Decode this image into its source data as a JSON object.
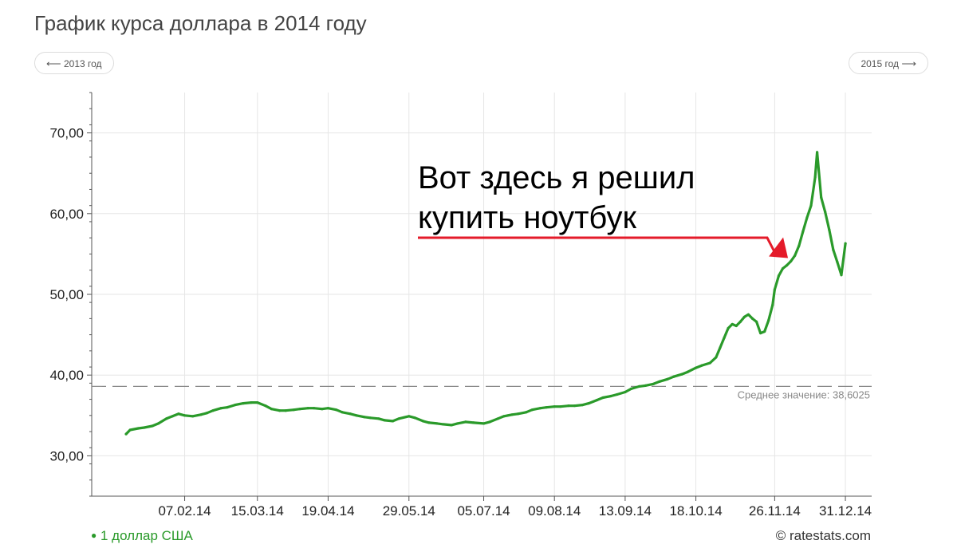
{
  "page": {
    "title": "График курса доллара в 2014 году",
    "prev_year_label": "2013 год",
    "next_year_label": "2015 год",
    "copyright": "© ratestats.com"
  },
  "colors": {
    "line": "#2a9a2a",
    "grid": "#e6e6e6",
    "axis": "#555555",
    "average": "#888888",
    "annotation_text": "#000000",
    "annotation_arrow": "#e41b2a"
  },
  "chart_data": {
    "type": "line",
    "title": "График курса доллара в 2014 году",
    "xlabel": "",
    "ylabel": "",
    "ylim": [
      25,
      75
    ],
    "xlim": [
      "2013-12-23",
      "2015-01-13"
    ],
    "y_ticks": [
      30,
      40,
      50,
      60,
      70
    ],
    "y_tick_labels": [
      "30,00",
      "40,00",
      "50,00",
      "60,00",
      "70,00"
    ],
    "x_ticks": [
      "2014-02-07",
      "2014-03-15",
      "2014-04-19",
      "2014-05-29",
      "2014-07-05",
      "2014-08-09",
      "2014-09-13",
      "2014-10-18",
      "2014-11-26",
      "2014-12-31"
    ],
    "x_tick_labels": [
      "07.02.14",
      "15.03.14",
      "19.04.14",
      "29.05.14",
      "05.07.14",
      "09.08.14",
      "13.09.14",
      "18.10.14",
      "26.11.14",
      "31.12.14"
    ],
    "grid": true,
    "legend_position": "bottom-left",
    "average": {
      "value": 38.6025,
      "label": "Среднее значение: 38,6025"
    },
    "annotation": {
      "lines": [
        "Вот здесь я решил",
        "купить ноутбук"
      ],
      "target": [
        "2014-12-01",
        54.3
      ]
    },
    "series": [
      {
        "name": "1 доллар США",
        "x": [
          "2014-01-09",
          "2014-01-11",
          "2014-01-15",
          "2014-01-18",
          "2014-01-22",
          "2014-01-25",
          "2014-01-29",
          "2014-02-01",
          "2014-02-04",
          "2014-02-07",
          "2014-02-11",
          "2014-02-15",
          "2014-02-18",
          "2014-02-21",
          "2014-02-25",
          "2014-02-28",
          "2014-03-04",
          "2014-03-08",
          "2014-03-12",
          "2014-03-15",
          "2014-03-19",
          "2014-03-22",
          "2014-03-26",
          "2014-03-29",
          "2014-04-02",
          "2014-04-05",
          "2014-04-09",
          "2014-04-12",
          "2014-04-16",
          "2014-04-19",
          "2014-04-23",
          "2014-04-26",
          "2014-04-30",
          "2014-05-03",
          "2014-05-07",
          "2014-05-10",
          "2014-05-14",
          "2014-05-17",
          "2014-05-21",
          "2014-05-24",
          "2014-05-29",
          "2014-06-01",
          "2014-06-05",
          "2014-06-08",
          "2014-06-12",
          "2014-06-15",
          "2014-06-19",
          "2014-06-22",
          "2014-06-26",
          "2014-06-30",
          "2014-07-05",
          "2014-07-08",
          "2014-07-12",
          "2014-07-15",
          "2014-07-19",
          "2014-07-22",
          "2014-07-26",
          "2014-07-29",
          "2014-08-02",
          "2014-08-05",
          "2014-08-09",
          "2014-08-12",
          "2014-08-16",
          "2014-08-19",
          "2014-08-23",
          "2014-08-26",
          "2014-08-30",
          "2014-09-02",
          "2014-09-06",
          "2014-09-09",
          "2014-09-13",
          "2014-09-16",
          "2014-09-20",
          "2014-09-23",
          "2014-09-27",
          "2014-09-30",
          "2014-10-04",
          "2014-10-07",
          "2014-10-11",
          "2014-10-14",
          "2014-10-18",
          "2014-10-21",
          "2014-10-25",
          "2014-10-28",
          "2014-10-30",
          "2014-11-01",
          "2014-11-03",
          "2014-11-05",
          "2014-11-07",
          "2014-11-09",
          "2014-11-11",
          "2014-11-13",
          "2014-11-15",
          "2014-11-17",
          "2014-11-19",
          "2014-11-21",
          "2014-11-23",
          "2014-11-25",
          "2014-11-26",
          "2014-11-28",
          "2014-11-30",
          "2014-12-02",
          "2014-12-04",
          "2014-12-06",
          "2014-12-08",
          "2014-12-10",
          "2014-12-12",
          "2014-12-14",
          "2014-12-16",
          "2014-12-17",
          "2014-12-19",
          "2014-12-21",
          "2014-12-23",
          "2014-12-25",
          "2014-12-27",
          "2014-12-29",
          "2014-12-31"
        ],
        "values": [
          32.7,
          33.2,
          33.4,
          33.5,
          33.7,
          34.0,
          34.6,
          34.9,
          35.2,
          35.0,
          34.9,
          35.1,
          35.3,
          35.6,
          35.9,
          36.0,
          36.3,
          36.5,
          36.6,
          36.6,
          36.2,
          35.8,
          35.6,
          35.6,
          35.7,
          35.8,
          35.9,
          35.9,
          35.8,
          35.9,
          35.7,
          35.4,
          35.2,
          35.0,
          34.8,
          34.7,
          34.6,
          34.4,
          34.3,
          34.6,
          34.9,
          34.7,
          34.3,
          34.1,
          34.0,
          33.9,
          33.8,
          34.0,
          34.2,
          34.1,
          34.0,
          34.2,
          34.6,
          34.9,
          35.1,
          35.2,
          35.4,
          35.7,
          35.9,
          36.0,
          36.1,
          36.1,
          36.2,
          36.2,
          36.3,
          36.5,
          36.9,
          37.2,
          37.4,
          37.6,
          37.9,
          38.3,
          38.6,
          38.7,
          38.9,
          39.2,
          39.5,
          39.8,
          40.1,
          40.4,
          40.9,
          41.2,
          41.5,
          42.2,
          43.4,
          44.6,
          45.8,
          46.3,
          46.1,
          46.6,
          47.2,
          47.5,
          47.0,
          46.6,
          45.2,
          45.4,
          46.8,
          48.7,
          50.6,
          52.3,
          53.2,
          53.6,
          54.1,
          54.8,
          56.0,
          57.8,
          59.5,
          61.0,
          64.5,
          67.6,
          62.0,
          60.2,
          58.0,
          55.5,
          54.0,
          52.4,
          56.3
        ]
      }
    ]
  }
}
